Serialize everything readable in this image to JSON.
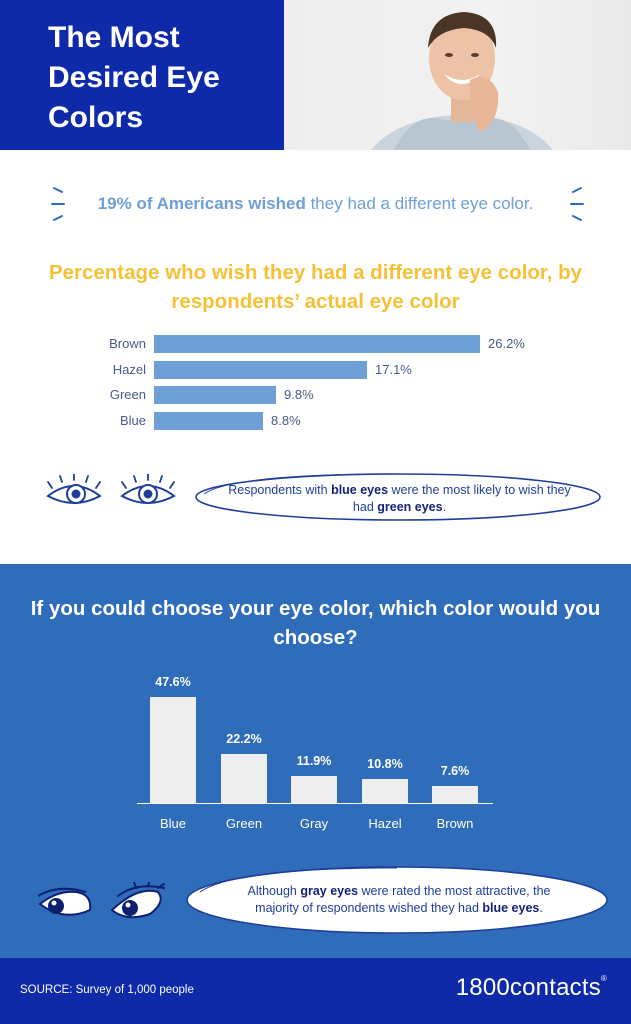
{
  "header": {
    "title": "The Most Desired Eye Colors"
  },
  "stat": {
    "bold_part": "19% of Americans wished",
    "rest": " they had a different eye color."
  },
  "callout1": {
    "pre": "Respondents with ",
    "bold1": "blue eyes",
    "mid": " were the most likely to wish they had ",
    "bold2": "green eyes",
    "post": "."
  },
  "callout2": {
    "pre": "Although ",
    "bold1": "gray eyes",
    "mid": " were rated the most attractive, the majority of respondents wished they had ",
    "bold2": "blue eyes",
    "post": "."
  },
  "footer": {
    "source": "SOURCE: Survey of 1,000 people",
    "brand": "1800contacts",
    "brand_mark": "®"
  },
  "colors": {
    "navy": "#0f2aa8",
    "blue": "#2f6cba",
    "bar": "#6f9fd7",
    "yellow": "#f5c237"
  },
  "chart_data": [
    {
      "type": "bar",
      "orientation": "horizontal",
      "title": "Percentage who wish they had a different eye color, by respondents’ actual eye color",
      "categories": [
        "Brown",
        "Hazel",
        "Green",
        "Blue"
      ],
      "values": [
        26.2,
        17.1,
        9.8,
        8.8
      ],
      "value_labels": [
        "26.2%",
        "17.1%",
        "9.8%",
        "8.8%"
      ],
      "unit": "%",
      "xlim": [
        0,
        26.2
      ]
    },
    {
      "type": "bar",
      "orientation": "vertical",
      "title": "If you could choose your eye color, which color would you choose?",
      "categories": [
        "Blue",
        "Green",
        "Gray",
        "Hazel",
        "Brown"
      ],
      "values": [
        47.6,
        22.2,
        11.9,
        10.8,
        7.6
      ],
      "value_labels": [
        "47.6%",
        "22.2%",
        "11.9%",
        "10.8%",
        "7.6%"
      ],
      "unit": "%",
      "ylim": [
        0,
        47.6
      ]
    }
  ]
}
